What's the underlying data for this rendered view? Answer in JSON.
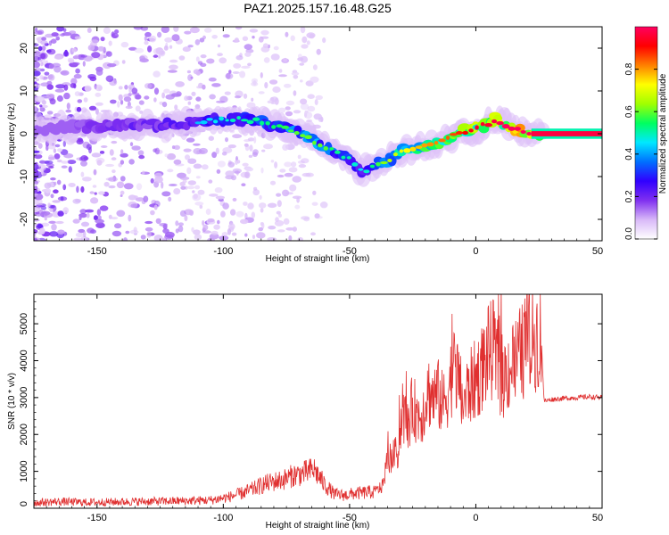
{
  "figure": {
    "title": "PAZ1.2025.157.16.48.G25"
  },
  "chart_data": [
    {
      "type": "heatmap",
      "xlabel": "Height of straight line (km)",
      "ylabel": "Frequency (Hz)",
      "xlim": [
        -175,
        50
      ],
      "ylim": [
        -25,
        25
      ],
      "xticks": [
        -150,
        -100,
        -50,
        0,
        50
      ],
      "yticks": [
        -20,
        -10,
        0,
        10,
        20
      ],
      "colorbar": {
        "label": "Normalized spectral amplitude",
        "range": [
          0,
          1
        ],
        "ticks": [
          0.0,
          0.2,
          0.4,
          0.6,
          0.8
        ],
        "colors": [
          "#ffffff",
          "#d8b8f8",
          "#8030f0",
          "#3000ff",
          "#0070ff",
          "#00e8ff",
          "#00ff60",
          "#a0ff00",
          "#ffff00",
          "#ff8000",
          "#ff0000",
          "#ff0060"
        ]
      },
      "ridge": {
        "x": [
          -175,
          -160,
          -145,
          -130,
          -115,
          -105,
          -95,
          -85,
          -78,
          -70,
          -65,
          -60,
          -55,
          -50,
          -45,
          -40,
          -35,
          -30,
          -25,
          -20,
          -15,
          -10,
          -5,
          0,
          5,
          8,
          12,
          16,
          20,
          25,
          30,
          35,
          40,
          45,
          50
        ],
        "y": [
          1,
          1.5,
          2,
          2,
          2.5,
          3,
          3.5,
          3,
          1.5,
          0.5,
          -1.5,
          -3,
          -4.5,
          -6,
          -9,
          -7,
          -6.5,
          -4,
          -3.5,
          -3,
          -2,
          -1,
          0.5,
          1,
          2.5,
          3.5,
          2,
          1,
          0.3,
          0,
          0,
          0,
          0,
          0,
          0
        ],
        "amplitude": [
          0.15,
          0.2,
          0.25,
          0.28,
          0.3,
          0.35,
          0.4,
          0.42,
          0.45,
          0.5,
          0.5,
          0.5,
          0.42,
          0.4,
          0.35,
          0.45,
          0.55,
          0.6,
          0.65,
          0.7,
          0.72,
          0.75,
          0.8,
          0.85,
          0.85,
          0.88,
          0.9,
          0.95,
          1.0,
          1.0,
          1.0,
          1.0,
          1.0,
          1.0,
          1.0
        ]
      }
    },
    {
      "type": "line",
      "xlabel": "Height of straight line (km)",
      "ylabel": "SNR (10 * v/v)",
      "xlim": [
        -175,
        50
      ],
      "ylim": [
        0,
        5800
      ],
      "xticks": [
        -150,
        -100,
        -50,
        0,
        50
      ],
      "yticks": [
        0,
        1000,
        2000,
        3000,
        4000,
        5000
      ],
      "line_color": "#e03030",
      "series": [
        {
          "x": [
            -175,
            -165,
            -155,
            -145,
            -135,
            -125,
            -115,
            -105,
            -98,
            -92,
            -88,
            -84,
            -80,
            -76,
            -72,
            -68,
            -64,
            -60,
            -56,
            -52,
            -48,
            -44,
            -40,
            -37,
            -35,
            -33,
            -31,
            -29,
            -27,
            -25,
            -23,
            -21,
            -19,
            -17,
            -15,
            -13,
            -11,
            -9,
            -7,
            -5,
            -3,
            -1,
            1,
            3,
            5,
            7,
            9,
            11,
            13,
            15,
            17,
            19,
            21,
            23,
            25,
            26,
            27,
            30,
            35,
            40,
            45,
            50
          ],
          "y": [
            150,
            180,
            160,
            170,
            180,
            190,
            200,
            220,
            300,
            420,
            520,
            650,
            720,
            780,
            900,
            950,
            1050,
            650,
            380,
            350,
            400,
            420,
            450,
            600,
            1300,
            1400,
            1500,
            2600,
            2200,
            2800,
            2500,
            2600,
            3200,
            3000,
            3100,
            2800,
            3200,
            3800,
            3500,
            2800,
            3200,
            3400,
            3600,
            3900,
            4200,
            4300,
            3800,
            3500,
            3800,
            3900,
            4100,
            4300,
            4500,
            4600,
            4700,
            4500,
            2900,
            2950,
            2980,
            3000,
            3020,
            3000
          ]
        }
      ]
    }
  ]
}
